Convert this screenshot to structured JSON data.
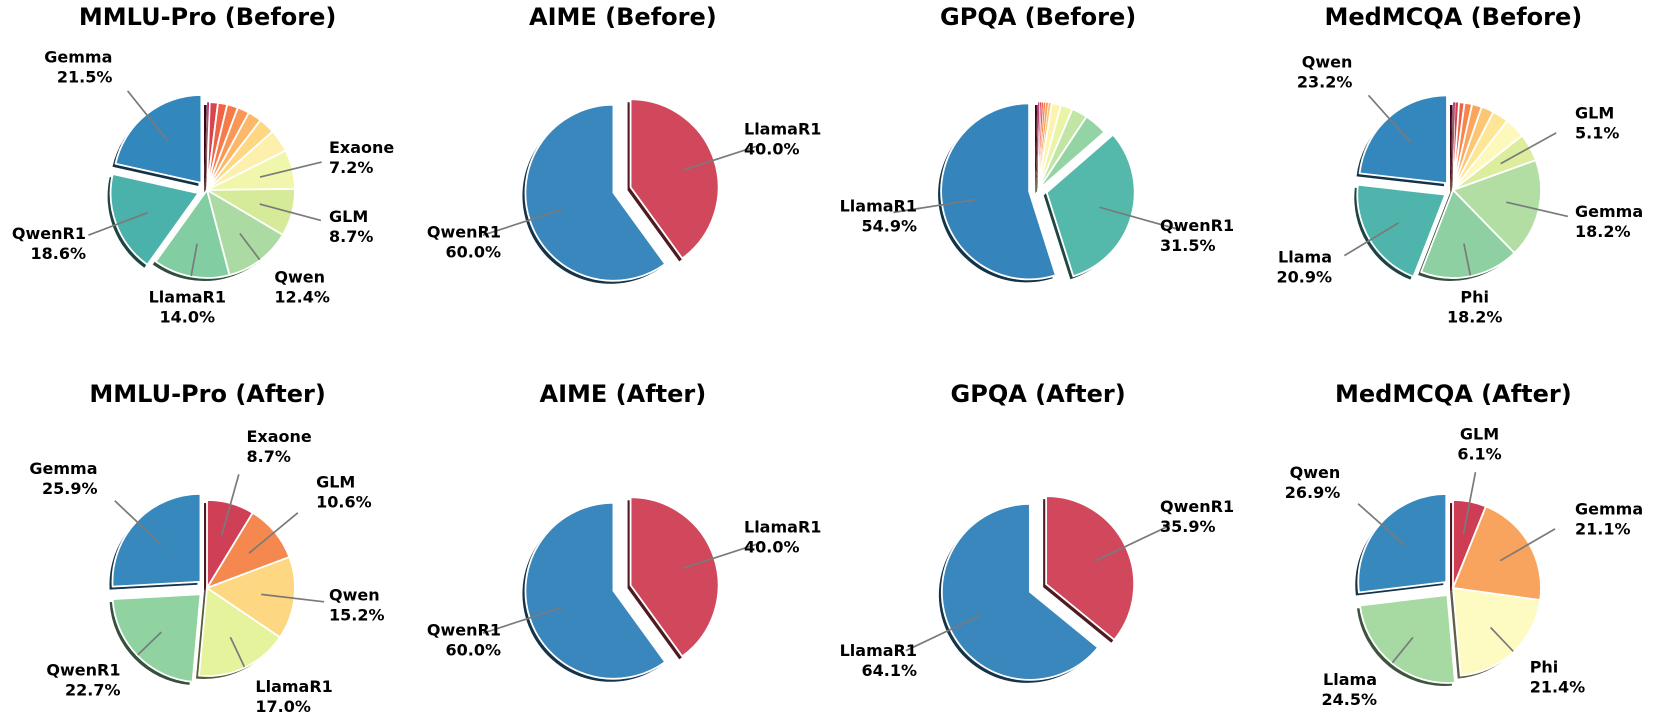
{
  "figure_title": "",
  "chart_data": [
    {
      "type": "pie",
      "title": "MMLU-Pro (Before)",
      "legend_position": "none",
      "start_angle": "12-o-clock-clockwise",
      "slices": [
        {
          "label": "",
          "value": 0.5,
          "color": "#9e0142",
          "exploded": false
        },
        {
          "label": "",
          "value": 1.5,
          "color": "#d8434e",
          "exploded": false
        },
        {
          "label": "",
          "value": 1.7,
          "color": "#ee6445",
          "exploded": false
        },
        {
          "label": "",
          "value": 2.0,
          "color": "#f67b49",
          "exploded": false
        },
        {
          "label": "",
          "value": 2.2,
          "color": "#fa9656",
          "exploded": false
        },
        {
          "label": "",
          "value": 2.5,
          "color": "#fdb768",
          "exploded": false
        },
        {
          "label": "",
          "value": 3.0,
          "color": "#fdd782",
          "exploded": false
        },
        {
          "label": "",
          "value": 4.2,
          "color": "#fdf0ac",
          "exploded": false
        },
        {
          "label": "Exaone",
          "pct": "7.2%",
          "value": 7.2,
          "color": "#f0f7ac",
          "exploded": false
        },
        {
          "label": "GLM",
          "pct": "8.7%",
          "value": 8.7,
          "color": "#d6eb99",
          "exploded": false
        },
        {
          "label": "Qwen",
          "pct": "12.4%",
          "value": 12.4,
          "color": "#abdba3",
          "exploded": false
        },
        {
          "label": "LlamaR1",
          "pct": "14.0%",
          "value": 14.0,
          "color": "#82cda1",
          "exploded": false
        },
        {
          "label": "QwenR1",
          "pct": "18.6%",
          "value": 18.6,
          "color": "#4bb2ab",
          "exploded": true
        },
        {
          "label": "Gemma",
          "pct": "21.5%",
          "value": 21.5,
          "color": "#3288bd",
          "exploded": true
        }
      ]
    },
    {
      "type": "pie",
      "title": "AIME (Before)",
      "legend_position": "none",
      "start_angle": "12-o-clock-clockwise",
      "slices": [
        {
          "label": "LlamaR1",
          "pct": "40.0%",
          "value": 40.0,
          "color": "#d1475b",
          "exploded": true
        },
        {
          "label": "QwenR1",
          "pct": "60.0%",
          "value": 60.0,
          "color": "#3a87bd",
          "exploded": true
        }
      ]
    },
    {
      "type": "pie",
      "title": "GPQA (Before)",
      "legend_position": "none",
      "start_angle": "12-o-clock-clockwise",
      "slices": [
        {
          "label": "",
          "value": 0.3,
          "color": "#9e0142",
          "exploded": false
        },
        {
          "label": "",
          "value": 0.3,
          "color": "#cf384c",
          "exploded": false
        },
        {
          "label": "",
          "value": 0.4,
          "color": "#ea5c47",
          "exploded": false
        },
        {
          "label": "",
          "value": 0.4,
          "color": "#f67f4b",
          "exploded": false
        },
        {
          "label": "",
          "value": 0.5,
          "color": "#fba35c",
          "exploded": false
        },
        {
          "label": "",
          "value": 0.6,
          "color": "#fdc775",
          "exploded": false
        },
        {
          "label": "",
          "value": 1.7,
          "color": "#fdf2ae",
          "exploded": false
        },
        {
          "label": "",
          "value": 2.2,
          "color": "#e9f5a6",
          "exploded": false
        },
        {
          "label": "",
          "value": 2.9,
          "color": "#c0e5a5",
          "exploded": false
        },
        {
          "label": "",
          "value": 4.3,
          "color": "#94d3a3",
          "exploded": false
        },
        {
          "label": "QwenR1",
          "pct": "31.5%",
          "value": 31.5,
          "color": "#54b9ab",
          "exploded": true
        },
        {
          "label": "LlamaR1",
          "pct": "54.9%",
          "value": 54.9,
          "color": "#3585bc",
          "exploded": true
        }
      ]
    },
    {
      "type": "pie",
      "title": "MedMCQA (Before)",
      "legend_position": "none",
      "start_angle": "12-o-clock-clockwise",
      "slices": [
        {
          "label": "",
          "value": 0.4,
          "color": "#9e0142",
          "exploded": false
        },
        {
          "label": "",
          "value": 0.7,
          "color": "#d4414e",
          "exploded": false
        },
        {
          "label": "",
          "value": 1.0,
          "color": "#ec6246",
          "exploded": false
        },
        {
          "label": "",
          "value": 1.4,
          "color": "#f78549",
          "exploded": false
        },
        {
          "label": "",
          "value": 1.8,
          "color": "#fca55c",
          "exploded": false
        },
        {
          "label": "",
          "value": 2.3,
          "color": "#fdc674",
          "exploded": false
        },
        {
          "label": "",
          "value": 3.0,
          "color": "#fee697",
          "exploded": false
        },
        {
          "label": "",
          "value": 3.8,
          "color": "#fdf9bd",
          "exploded": false
        },
        {
          "label": "GLM",
          "pct": "5.1%",
          "value": 5.1,
          "color": "#dcee9e",
          "exploded": false
        },
        {
          "label": "Gemma",
          "pct": "18.2%",
          "value": 18.2,
          "color": "#b2dea4",
          "exploded": false
        },
        {
          "label": "Phi",
          "pct": "18.2%",
          "value": 18.2,
          "color": "#8ed0a2",
          "exploded": false
        },
        {
          "label": "Llama",
          "pct": "20.9%",
          "value": 20.9,
          "color": "#4fb4ac",
          "exploded": true
        },
        {
          "label": "Qwen",
          "pct": "23.2%",
          "value": 23.2,
          "color": "#3487bc",
          "exploded": true
        }
      ]
    },
    {
      "type": "pie",
      "title": "MMLU-Pro (After)",
      "legend_position": "none",
      "start_angle": "12-o-clock-clockwise",
      "slices": [
        {
          "label": "Exaone",
          "pct": "8.7%",
          "value": 8.7,
          "color": "#cf3f55",
          "exploded": false
        },
        {
          "label": "GLM",
          "pct": "10.6%",
          "value": 10.6,
          "color": "#f5884e",
          "exploded": false
        },
        {
          "label": "Qwen",
          "pct": "15.2%",
          "value": 15.2,
          "color": "#fdd781",
          "exploded": false
        },
        {
          "label": "LlamaR1",
          "pct": "17.0%",
          "value": 17.0,
          "color": "#e4f39c",
          "exploded": false
        },
        {
          "label": "QwenR1",
          "pct": "22.7%",
          "value": 22.7,
          "color": "#90d2a0",
          "exploded": true
        },
        {
          "label": "Gemma",
          "pct": "25.9%",
          "value": 25.9,
          "color": "#3788bd",
          "exploded": true
        }
      ]
    },
    {
      "type": "pie",
      "title": "AIME (After)",
      "legend_position": "none",
      "start_angle": "12-o-clock-clockwise",
      "slices": [
        {
          "label": "LlamaR1",
          "pct": "40.0%",
          "value": 40.0,
          "color": "#d1475b",
          "exploded": true
        },
        {
          "label": "QwenR1",
          "pct": "60.0%",
          "value": 60.0,
          "color": "#3a87bd",
          "exploded": true
        }
      ]
    },
    {
      "type": "pie",
      "title": "GPQA (After)",
      "legend_position": "none",
      "start_angle": "12-o-clock-clockwise",
      "slices": [
        {
          "label": "QwenR1",
          "pct": "35.9%",
          "value": 35.9,
          "color": "#d1475b",
          "exploded": true
        },
        {
          "label": "LlamaR1",
          "pct": "64.1%",
          "value": 64.1,
          "color": "#3a87bd",
          "exploded": true
        }
      ]
    },
    {
      "type": "pie",
      "title": "MedMCQA (After)",
      "legend_position": "none",
      "start_angle": "12-o-clock-clockwise",
      "slices": [
        {
          "label": "GLM",
          "pct": "6.1%",
          "value": 6.1,
          "color": "#cd3d53",
          "exploded": false
        },
        {
          "label": "Gemma",
          "pct": "21.1%",
          "value": 21.1,
          "color": "#f9a45e",
          "exploded": false
        },
        {
          "label": "Phi",
          "pct": "21.4%",
          "value": 21.4,
          "color": "#fdfbc1",
          "exploded": false
        },
        {
          "label": "Llama",
          "pct": "24.5%",
          "value": 24.5,
          "color": "#a6daa2",
          "exploded": true
        },
        {
          "label": "Qwen",
          "pct": "26.9%",
          "value": 26.9,
          "color": "#3788bd",
          "exploded": true
        }
      ]
    }
  ],
  "style": {
    "wedge_edge_color": "#ffffff",
    "leader_line_color": "#7a7a7a",
    "label_color": "#000000",
    "shadow": "true"
  }
}
